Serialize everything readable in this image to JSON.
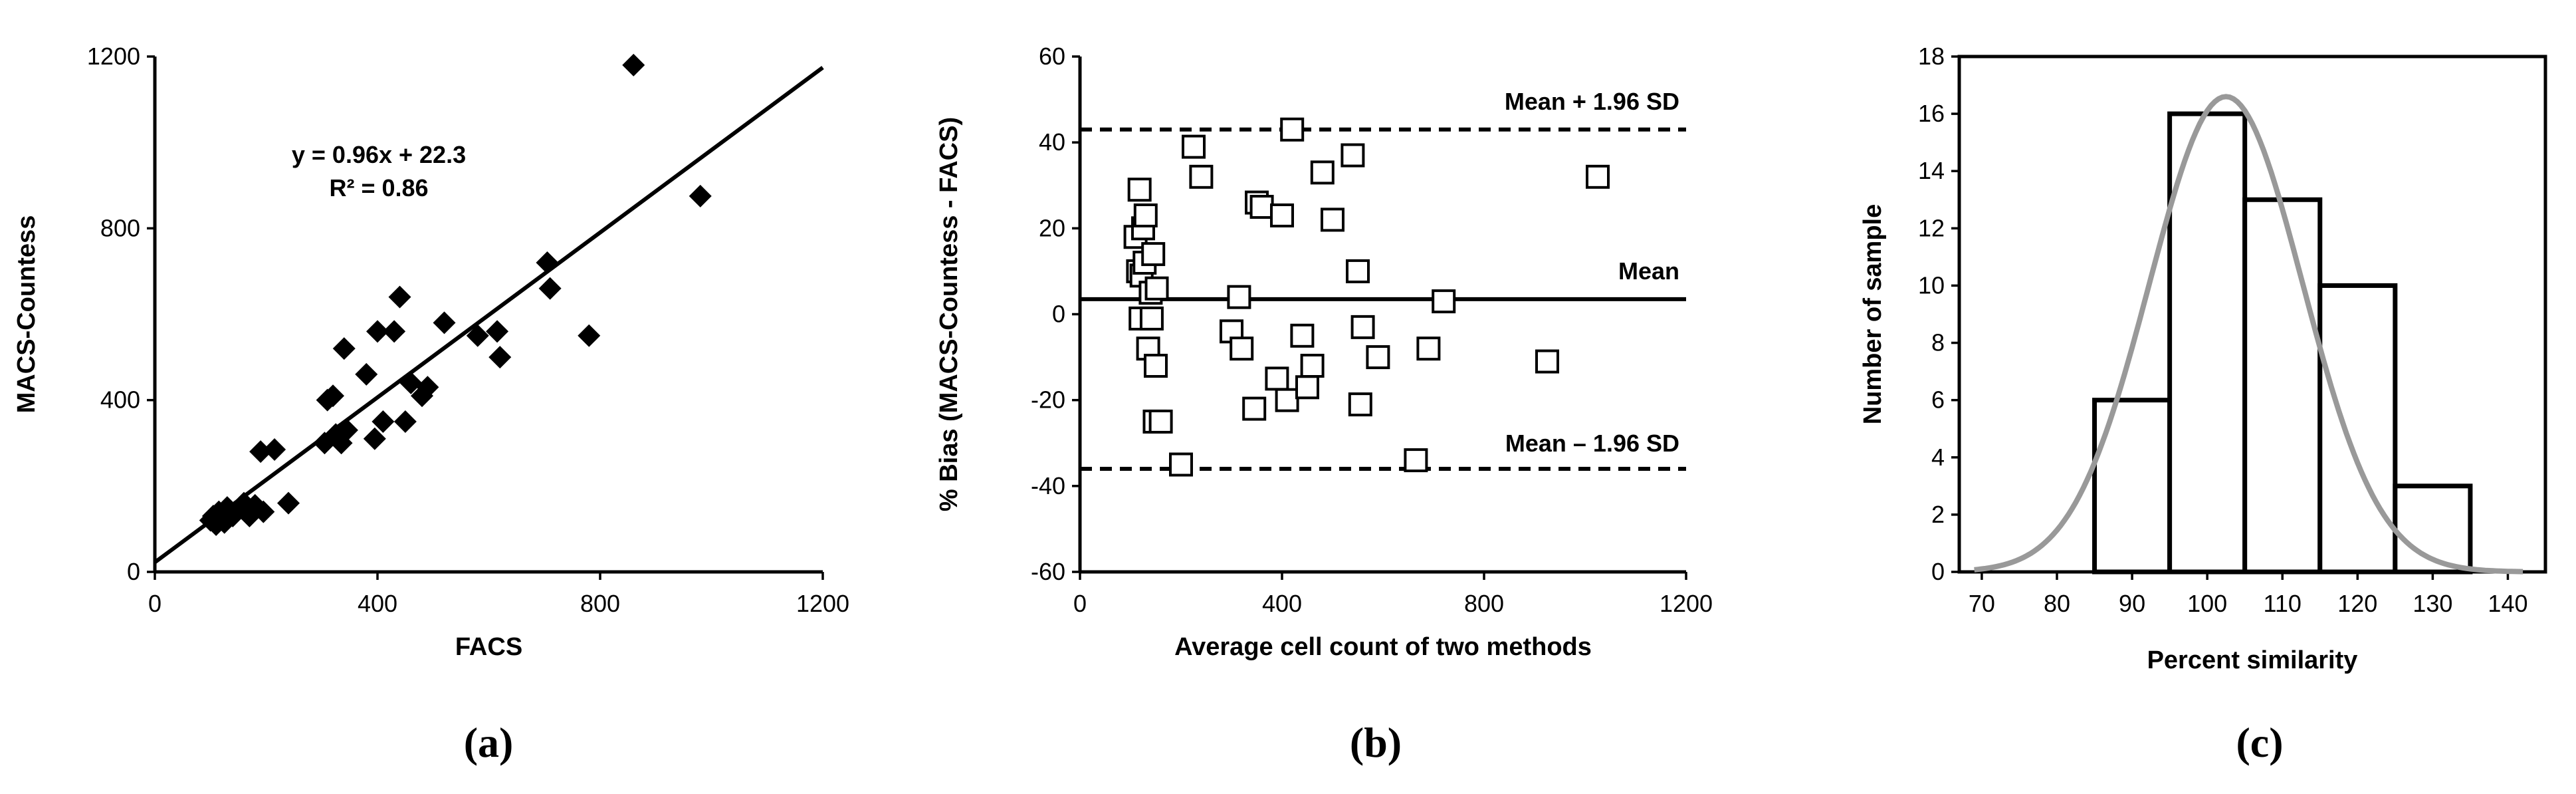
{
  "chart_data": [
    {
      "type": "scatter",
      "panel_label": "(a)",
      "xlabel": "FACS",
      "ylabel": "MACS-Countess",
      "xlim": [
        0,
        1200
      ],
      "ylim": [
        0,
        1200
      ],
      "xticks": [
        0,
        400,
        800,
        1200
      ],
      "yticks": [
        0,
        400,
        800,
        1200
      ],
      "marker": "diamond",
      "equation": "y = 0.96x + 22.3",
      "r_squared": "R² = 0.86",
      "regression": {
        "slope": 0.96,
        "intercept": 22.3
      },
      "points": [
        [
          100,
          120
        ],
        [
          105,
          130
        ],
        [
          110,
          110
        ],
        [
          115,
          140
        ],
        [
          120,
          125
        ],
        [
          125,
          115
        ],
        [
          130,
          150
        ],
        [
          140,
          130
        ],
        [
          150,
          145
        ],
        [
          160,
          160
        ],
        [
          170,
          130
        ],
        [
          180,
          155
        ],
        [
          195,
          140
        ],
        [
          190,
          280
        ],
        [
          215,
          285
        ],
        [
          240,
          160
        ],
        [
          305,
          300
        ],
        [
          310,
          400
        ],
        [
          320,
          410
        ],
        [
          325,
          320
        ],
        [
          335,
          300
        ],
        [
          345,
          330
        ],
        [
          340,
          520
        ],
        [
          380,
          460
        ],
        [
          395,
          310
        ],
        [
          400,
          560
        ],
        [
          410,
          350
        ],
        [
          430,
          560
        ],
        [
          440,
          640
        ],
        [
          450,
          350
        ],
        [
          460,
          440
        ],
        [
          480,
          410
        ],
        [
          490,
          430
        ],
        [
          520,
          580
        ],
        [
          580,
          550
        ],
        [
          615,
          560
        ],
        [
          620,
          500
        ],
        [
          705,
          720
        ],
        [
          710,
          660
        ],
        [
          780,
          550
        ],
        [
          860,
          1180
        ],
        [
          980,
          875
        ]
      ]
    },
    {
      "type": "scatter",
      "panel_label": "(b)",
      "xlabel": "Average cell count of two methods",
      "ylabel": "% Bias (MACS-Countess - FACS)",
      "xlim": [
        0,
        1200
      ],
      "ylim": [
        -60,
        60
      ],
      "xticks": [
        0,
        400,
        800,
        1200
      ],
      "yticks": [
        -60,
        -40,
        -20,
        0,
        20,
        40,
        60
      ],
      "marker": "open-square",
      "reference_lines": [
        {
          "label": "Mean + 1.96 SD",
          "value": 43,
          "style": "dashed"
        },
        {
          "label": "Mean",
          "value": 3.5,
          "style": "solid"
        },
        {
          "label": "Mean – 1.96 SD",
          "value": -36,
          "style": "dashed"
        }
      ],
      "points": [
        [
          110,
          18
        ],
        [
          115,
          10
        ],
        [
          118,
          29
        ],
        [
          120,
          -1
        ],
        [
          122,
          9
        ],
        [
          125,
          20
        ],
        [
          128,
          12
        ],
        [
          130,
          23
        ],
        [
          135,
          -8
        ],
        [
          140,
          5
        ],
        [
          142,
          -1
        ],
        [
          145,
          14
        ],
        [
          148,
          -25
        ],
        [
          150,
          -12
        ],
        [
          152,
          6
        ],
        [
          160,
          -25
        ],
        [
          200,
          -35
        ],
        [
          225,
          39
        ],
        [
          240,
          32
        ],
        [
          300,
          -4
        ],
        [
          315,
          4
        ],
        [
          320,
          -8
        ],
        [
          345,
          -22
        ],
        [
          350,
          26
        ],
        [
          360,
          25
        ],
        [
          390,
          -15
        ],
        [
          400,
          23
        ],
        [
          410,
          -20
        ],
        [
          420,
          43
        ],
        [
          440,
          -5
        ],
        [
          450,
          -17
        ],
        [
          460,
          -12
        ],
        [
          480,
          33
        ],
        [
          500,
          22
        ],
        [
          540,
          37
        ],
        [
          550,
          10
        ],
        [
          555,
          -21
        ],
        [
          560,
          -3
        ],
        [
          590,
          -10
        ],
        [
          665,
          -34
        ],
        [
          690,
          -8
        ],
        [
          720,
          3
        ],
        [
          925,
          -11
        ],
        [
          1025,
          32
        ]
      ]
    },
    {
      "type": "bar",
      "panel_label": "(c)",
      "xlabel": "Percent similarity",
      "ylabel": "Number of sample",
      "xlim": [
        67,
        145
      ],
      "ylim": [
        0,
        18
      ],
      "xticks": [
        70,
        80,
        90,
        100,
        110,
        120,
        130,
        140
      ],
      "yticks": [
        0,
        2,
        4,
        6,
        8,
        10,
        12,
        14,
        16,
        18
      ],
      "bins": [
        {
          "from": 85,
          "to": 95,
          "value": 6
        },
        {
          "from": 95,
          "to": 105,
          "value": 16
        },
        {
          "from": 105,
          "to": 115,
          "value": 13
        },
        {
          "from": 115,
          "to": 125,
          "value": 10
        },
        {
          "from": 125,
          "to": 135,
          "value": 3
        }
      ],
      "normal_curve": {
        "mean": 102.5,
        "sd": 10.2,
        "peak": 16.6,
        "from": 69,
        "to": 142
      },
      "curve_color": "#999999"
    }
  ]
}
